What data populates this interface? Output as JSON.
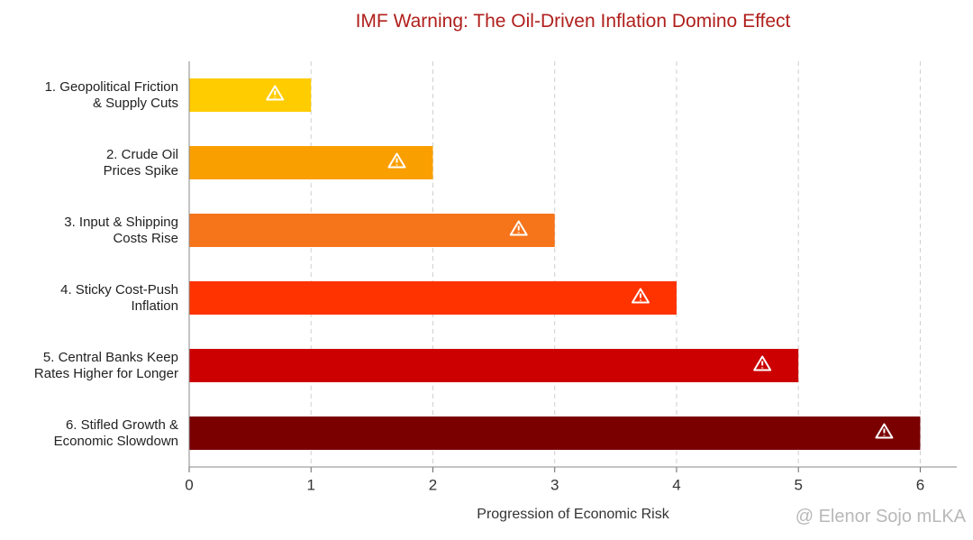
{
  "chart_data": {
    "type": "bar",
    "orientation": "horizontal",
    "title": "IMF Warning: The Oil-Driven Inflation Domino Effect",
    "x_label": "Progression of Economic Risk",
    "categories": [
      "1. Geopolitical Friction\n& Supply Cuts",
      "2. Crude Oil\nPrices Spike",
      "3. Input & Shipping\nCosts Rise",
      "4. Sticky Cost-Push\nInflation",
      "5. Central Banks Keep\nRates Higher for Longer",
      "6. Stifled Growth &\nEconomic Slowdown"
    ],
    "values": [
      1,
      2,
      3,
      4,
      5,
      6
    ],
    "colors": [
      "#ffcc00",
      "#fa9f00",
      "#f6741a",
      "#ff3300",
      "#cc0000",
      "#7a0000"
    ],
    "xlim": [
      0,
      6.3
    ],
    "xticks": [
      0,
      1,
      2,
      3,
      4,
      5,
      6
    ],
    "grid": true,
    "watermark": "@ Elenor Sojo mLKA"
  }
}
